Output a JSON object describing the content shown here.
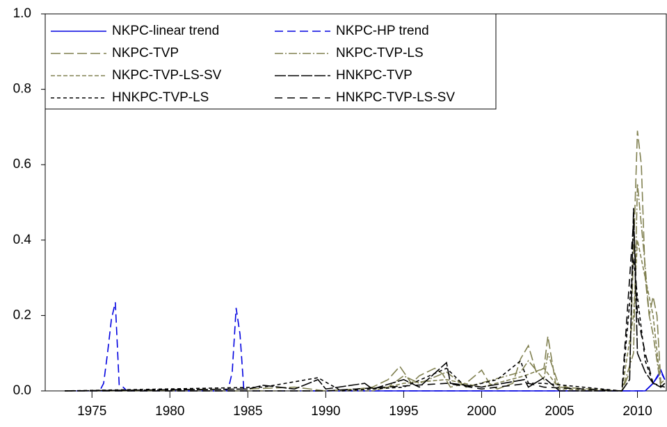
{
  "chart_data": {
    "type": "line",
    "xlim": [
      1972,
      2011.85
    ],
    "xticks": [
      1975,
      1980,
      1985,
      1990,
      1995,
      2000,
      2005,
      2010
    ],
    "ylim": [
      0,
      1
    ],
    "yticks": [
      {
        "value": 0,
        "label": "0.0"
      },
      0.2,
      0.4,
      0.6,
      0.8,
      {
        "value": 1,
        "label": "1.0"
      }
    ],
    "legend": "upper left",
    "series": [
      {
        "name": "NKPC-linear trend",
        "color": "#0000e0",
        "dash": "none",
        "x": [
          1973.25,
          2010.5,
          2011.0,
          2011.5,
          2011.75
        ],
        "values": [
          0,
          0,
          0.02,
          0.055,
          0.03
        ]
      },
      {
        "name": "NKPC-HP trend",
        "color": "#0000e0",
        "dash": "12,6",
        "x": [
          1973.25,
          1975.5,
          1975.75,
          1976,
          1976.25,
          1976.5,
          1976.75,
          1977,
          1977.25,
          1983.5,
          1983.75,
          1984,
          1984.25,
          1984.5,
          1984.75,
          2010.5,
          2011,
          2011.5,
          2011.75
        ],
        "values": [
          0,
          0,
          0.02,
          0.1,
          0.19,
          0.235,
          0.015,
          0.01,
          0,
          0,
          0.005,
          0.05,
          0.22,
          0.15,
          0,
          0,
          0.02,
          0.05,
          0.03
        ]
      },
      {
        "name": "NKPC-TVP",
        "color": "#808050",
        "dash": "14,5",
        "x": [
          1973.25,
          1985,
          1988,
          1990,
          1992,
          1993,
          1994,
          1994.75,
          1995.5,
          1996,
          1997,
          1997.5,
          1998,
          1999,
          2000,
          2000.5,
          2001,
          2002,
          2002.5,
          2003,
          2003.5,
          2004,
          2004.25,
          2004.75,
          2005.5,
          2006,
          2009,
          2009.5,
          2010,
          2010.25,
          2010.5,
          2010.75,
          2011,
          2011.25,
          2011.5,
          2011.75
        ],
        "values": [
          0,
          0.005,
          0.01,
          0,
          0.005,
          0.01,
          0.03,
          0.065,
          0.02,
          0.04,
          0.06,
          0.045,
          0.01,
          0.02,
          0.055,
          0.02,
          0.005,
          0.02,
          0.085,
          0.12,
          0.05,
          0.06,
          0.145,
          0.02,
          0.01,
          0,
          0,
          0.05,
          0.69,
          0.6,
          0.3,
          0.2,
          0.25,
          0.2,
          0.02,
          0.03
        ]
      },
      {
        "name": "NKPC-TVP-LS",
        "color": "#808050",
        "dash": "12,3,2,3",
        "x": [
          1973.25,
          1990,
          1994,
          1995,
          1996,
          1997.75,
          1999,
          2002.5,
          2003,
          2004,
          2004.25,
          2005,
          2009,
          2009.75,
          2010,
          2010.5,
          2010.75,
          2011,
          2011.5,
          2011.75
        ],
        "values": [
          0,
          0,
          0.01,
          0.04,
          0.02,
          0.05,
          0.01,
          0.05,
          0.08,
          0.03,
          0.1,
          0.01,
          0,
          0.1,
          0.55,
          0.33,
          0.2,
          0.15,
          0.01,
          0.02
        ]
      },
      {
        "name": "NKPC-TVP-LS-SV",
        "color": "#808050",
        "dash": "6,3",
        "x": [
          1973.25,
          1993,
          1995,
          1997.75,
          2000,
          2002.75,
          2004,
          2005,
          2009,
          2009.75,
          2010,
          2010.5,
          2011,
          2011.5,
          2011.75
        ],
        "values": [
          0,
          0,
          0.02,
          0.03,
          0.01,
          0.04,
          0.06,
          0.005,
          0,
          0.2,
          0.4,
          0.3,
          0.2,
          0.01,
          0.02
        ]
      },
      {
        "name": "HNKPC-TVP",
        "color": "#000000",
        "dash": "16,3",
        "x": [
          1973.25,
          1985,
          1986,
          1987,
          1988,
          1989.5,
          1990,
          1992.5,
          1993,
          1995,
          1996,
          1997.75,
          1998,
          2000,
          2002.75,
          2003,
          2004,
          2005,
          2009,
          2009.5,
          2009.75,
          2010,
          2010.5,
          2011,
          2011.5,
          2011.75
        ],
        "values": [
          0,
          0.005,
          0.015,
          0.01,
          0.005,
          0.03,
          0.005,
          0.02,
          0.005,
          0.03,
          0.01,
          0.075,
          0.02,
          0.01,
          0.03,
          0.01,
          0.035,
          0,
          0,
          0.03,
          0.485,
          0.1,
          0.05,
          0.02,
          0.01,
          0.02
        ]
      },
      {
        "name": "HNKPC-TVP-LS",
        "color": "#000000",
        "dash": "5,4",
        "x": [
          1973.25,
          1986,
          1989.5,
          1991,
          1995,
          1997.75,
          1999,
          2001,
          2002.5,
          2003,
          2004,
          2009,
          2009.75,
          2010,
          2010.5,
          2011,
          2011.75
        ],
        "values": [
          0,
          0.01,
          0.035,
          0,
          0.01,
          0.06,
          0.01,
          0.03,
          0.08,
          0.02,
          0.02,
          0,
          0.35,
          0.25,
          0.08,
          0.02,
          0.01
        ]
      },
      {
        "name": "HNKPC-TVP-LS-SV",
        "color": "#000000",
        "dash": "11,7",
        "x": [
          1973.25,
          1990,
          1997.75,
          2000,
          2003,
          2004,
          2009,
          2009.75,
          2010,
          2010.5,
          2011,
          2011.75
        ],
        "values": [
          0,
          0,
          0.02,
          0.005,
          0.02,
          0.01,
          0,
          0.45,
          0.2,
          0.1,
          0.02,
          0.01
        ]
      }
    ]
  }
}
